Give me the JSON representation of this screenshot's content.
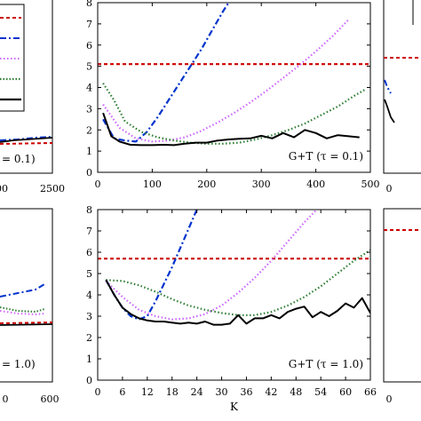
{
  "chart_data": [
    {
      "panel": "center-top",
      "type": "line",
      "annotation": "G+T (τ = 0.1)",
      "xlabel": "",
      "ylabel": "",
      "xlim": [
        0,
        500
      ],
      "ylim": [
        0,
        8
      ],
      "xticks": [
        0,
        100,
        200,
        300,
        400,
        500
      ],
      "yticks": [
        0,
        1,
        2,
        3,
        4,
        5,
        6,
        7,
        8
      ],
      "series": [
        {
          "color": "#cc0000",
          "dash": "dashed",
          "x": [
            0,
            500
          ],
          "y": [
            5.1,
            5.1
          ]
        },
        {
          "color": "#0033cc",
          "dash": "dashdot",
          "x": [
            10,
            30,
            50,
            70,
            90,
            110,
            130,
            150,
            170,
            190,
            210,
            230,
            250
          ],
          "y": [
            2.5,
            1.6,
            1.5,
            1.45,
            1.9,
            2.6,
            3.4,
            4.2,
            5.0,
            5.8,
            6.7,
            7.6,
            8.4
          ]
        },
        {
          "color": "#cc66ff",
          "dash": "dotted",
          "x": [
            10,
            40,
            70,
            100,
            130,
            160,
            190,
            220,
            250,
            280,
            310,
            340,
            370,
            400,
            430,
            460
          ],
          "y": [
            3.2,
            2.1,
            1.6,
            1.45,
            1.5,
            1.65,
            1.95,
            2.35,
            2.8,
            3.3,
            3.85,
            4.45,
            5.05,
            5.7,
            6.4,
            7.2
          ]
        },
        {
          "color": "#2e7d32",
          "dash": "dotted",
          "x": [
            10,
            30,
            50,
            80,
            110,
            140,
            170,
            200,
            230,
            260,
            290,
            320,
            350,
            380,
            410,
            440,
            470,
            490
          ],
          "y": [
            4.2,
            3.4,
            2.4,
            1.9,
            1.65,
            1.5,
            1.4,
            1.35,
            1.35,
            1.4,
            1.55,
            1.75,
            2.0,
            2.3,
            2.7,
            3.1,
            3.6,
            3.9
          ]
        },
        {
          "color": "#000000",
          "dash": "solid",
          "x": [
            10,
            25,
            40,
            60,
            80,
            100,
            120,
            140,
            160,
            180,
            200,
            220,
            240,
            260,
            280,
            300,
            320,
            340,
            360,
            380,
            400,
            420,
            440,
            460,
            480
          ],
          "y": [
            2.8,
            1.7,
            1.45,
            1.3,
            1.28,
            1.28,
            1.3,
            1.28,
            1.35,
            1.4,
            1.4,
            1.5,
            1.55,
            1.58,
            1.6,
            1.72,
            1.6,
            1.85,
            1.65,
            2.0,
            1.85,
            1.6,
            1.75,
            1.7,
            1.65
          ]
        }
      ]
    },
    {
      "panel": "center-bottom",
      "type": "line",
      "annotation": "G+T (τ = 1.0)",
      "xlabel": "K",
      "ylabel": "",
      "xlim": [
        0,
        66
      ],
      "ylim": [
        0,
        8
      ],
      "xticks": [
        0,
        6,
        12,
        18,
        24,
        30,
        36,
        42,
        48,
        54,
        60,
        66
      ],
      "yticks": [
        0,
        1,
        2,
        3,
        4,
        5,
        6,
        7,
        8
      ],
      "series": [
        {
          "color": "#cc0000",
          "dash": "dashed",
          "x": [
            0,
            66
          ],
          "y": [
            5.7,
            5.7
          ]
        },
        {
          "color": "#0033cc",
          "dash": "dashdot",
          "x": [
            2,
            4,
            6,
            8,
            10,
            12,
            14,
            16,
            18,
            20,
            22,
            24
          ],
          "y": [
            4.7,
            4.0,
            3.4,
            3.0,
            2.85,
            3.0,
            3.7,
            4.5,
            5.3,
            6.2,
            7.1,
            8.0
          ]
        },
        {
          "color": "#cc66ff",
          "dash": "dotted",
          "x": [
            2,
            6,
            10,
            14,
            18,
            22,
            26,
            30,
            34,
            38,
            42,
            46,
            50,
            54
          ],
          "y": [
            4.65,
            3.9,
            3.3,
            3.0,
            2.85,
            2.9,
            3.1,
            3.5,
            4.1,
            4.8,
            5.6,
            6.5,
            7.4,
            8.2
          ]
        },
        {
          "color": "#2e7d32",
          "dash": "dotted",
          "x": [
            2,
            6,
            10,
            14,
            18,
            22,
            26,
            30,
            34,
            38,
            42,
            46,
            50,
            54,
            58,
            62,
            66
          ],
          "y": [
            4.7,
            4.65,
            4.45,
            4.15,
            3.8,
            3.5,
            3.3,
            3.15,
            3.05,
            3.05,
            3.2,
            3.5,
            3.9,
            4.4,
            5.0,
            5.6,
            6.1
          ]
        },
        {
          "color": "#000000",
          "dash": "solid",
          "x": [
            2,
            4,
            6,
            8,
            10,
            12,
            14,
            16,
            18,
            20,
            22,
            24,
            26,
            28,
            30,
            32,
            34,
            36,
            38,
            40,
            42,
            44,
            46,
            48,
            50,
            52,
            54,
            56,
            58,
            60,
            62,
            64,
            66
          ],
          "y": [
            4.7,
            4.0,
            3.4,
            3.1,
            2.9,
            2.8,
            2.75,
            2.75,
            2.7,
            2.65,
            2.7,
            2.65,
            2.75,
            2.6,
            2.6,
            2.65,
            3.05,
            2.65,
            2.9,
            2.9,
            3.05,
            2.9,
            3.2,
            3.35,
            3.45,
            2.95,
            3.2,
            3.0,
            3.25,
            3.6,
            3.4,
            3.85,
            3.15
          ]
        }
      ]
    },
    {
      "panel": "left-top-partial",
      "type": "line",
      "annotation": "= 0.1)",
      "xticks_visible": [
        "00",
        "2500"
      ],
      "series": [
        {
          "color": "#cc0000",
          "dash": "dashed"
        },
        {
          "color": "#0033cc",
          "dash": "dashdot"
        },
        {
          "color": "#cc66ff",
          "dash": "dotted"
        },
        {
          "color": "#2e7d32",
          "dash": "dotted"
        },
        {
          "color": "#000000",
          "dash": "solid"
        }
      ]
    },
    {
      "panel": "left-bottom-partial",
      "type": "line",
      "annotation": "= 1.0)",
      "xticks_visible": [
        "0",
        "600"
      ]
    },
    {
      "panel": "right-top-partial",
      "type": "line",
      "xticks_visible": [
        "0"
      ]
    },
    {
      "panel": "right-bottom-partial",
      "type": "line",
      "xticks_visible": [
        "0"
      ]
    }
  ],
  "labels": {
    "left_top_tick_a": "00",
    "left_top_tick_b": "2500",
    "left_top_annotation": "= 0.1)",
    "left_bottom_tick_a": "0",
    "left_bottom_tick_b": "600",
    "left_bottom_annotation": "= 1.0)",
    "right_top_tick": "0",
    "right_bottom_tick": "0"
  }
}
